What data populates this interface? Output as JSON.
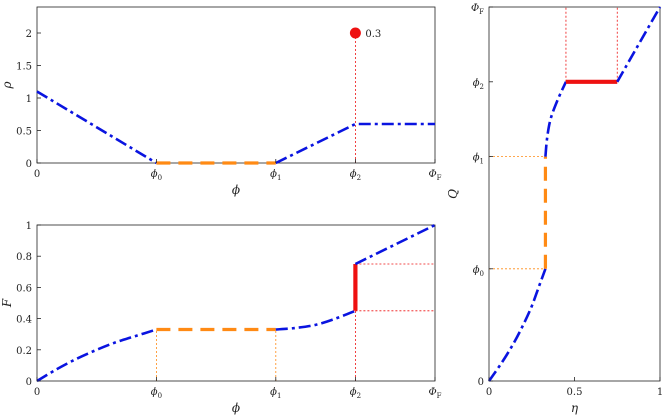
{
  "colors": {
    "blue": "#0a14e0",
    "orange": "#ff8a14",
    "red": "#ee1111",
    "axis": "#222222"
  },
  "chart_data": [
    {
      "type": "line",
      "name": "rho_vs_phi",
      "xlabel": "ϕ",
      "ylabel": "ρ",
      "xlim": [
        0,
        4
      ],
      "ylim": [
        0,
        2.4
      ],
      "x_ticks": [
        {
          "value": 0,
          "label": "0"
        },
        {
          "value": 1.5,
          "label": "ϕ",
          "sub": "0"
        },
        {
          "value": 3,
          "label": "ϕ",
          "sub": "1"
        },
        {
          "value": 4,
          "label": "ϕ",
          "sub": "2"
        },
        {
          "value": 5,
          "label": "Φ",
          "sub": "F"
        }
      ],
      "y_ticks": [
        {
          "value": 0,
          "label": "0"
        },
        {
          "value": 0.5,
          "label": "0.5"
        },
        {
          "value": 1,
          "label": "1"
        },
        {
          "value": 1.5,
          "label": "1.5"
        },
        {
          "value": 2,
          "label": "2"
        }
      ],
      "series": [
        {
          "style": "dashdot",
          "color": "blue",
          "points": [
            [
              0,
              1.1
            ],
            [
              1.5,
              0
            ],
            [
              1.5,
              0
            ]
          ]
        },
        {
          "style": "dashed",
          "color": "orange",
          "points": [
            [
              1.5,
              0
            ],
            [
              3,
              0
            ]
          ]
        },
        {
          "style": "dashdot",
          "color": "blue",
          "points": [
            [
              3,
              0
            ],
            [
              4,
              0.6
            ],
            [
              5,
              0.6
            ]
          ]
        }
      ],
      "guides": [
        {
          "points": [
            [
              4,
              0
            ],
            [
              4,
              2
            ]
          ],
          "color": "red"
        }
      ],
      "markers": [
        {
          "x": 4,
          "y": 2,
          "color": "red",
          "label": "0.3"
        }
      ]
    },
    {
      "type": "line",
      "name": "F_vs_phi",
      "xlabel": "ϕ",
      "ylabel": "F",
      "xlim": [
        0,
        5
      ],
      "ylim": [
        0,
        1
      ],
      "x_ticks": [
        {
          "value": 0,
          "label": "0"
        },
        {
          "value": 1.5,
          "label": "ϕ",
          "sub": "0"
        },
        {
          "value": 3,
          "label": "ϕ",
          "sub": "1"
        },
        {
          "value": 4,
          "label": "ϕ",
          "sub": "2"
        },
        {
          "value": 5,
          "label": "Φ",
          "sub": "F"
        }
      ],
      "y_ticks": [
        {
          "value": 0,
          "label": "0"
        },
        {
          "value": 0.2,
          "label": "0.2"
        },
        {
          "value": 0.4,
          "label": "0.4"
        },
        {
          "value": 0.6,
          "label": "0.6"
        },
        {
          "value": 0.8,
          "label": "0.8"
        },
        {
          "value": 1,
          "label": "1"
        }
      ],
      "series": [
        {
          "style": "dashdot",
          "color": "blue",
          "points": [
            [
              0,
              0
            ],
            [
              0.25,
              0.076
            ],
            [
              0.5,
              0.143
            ],
            [
              0.75,
              0.2
            ],
            [
              1.0,
              0.25
            ],
            [
              1.25,
              0.29
            ],
            [
              1.5,
              0.33
            ]
          ]
        },
        {
          "style": "dashed",
          "color": "orange",
          "points": [
            [
              1.5,
              0.33
            ],
            [
              3,
              0.33
            ]
          ]
        },
        {
          "style": "dashdot",
          "color": "blue",
          "points": [
            [
              3,
              0.33
            ],
            [
              3.25,
              0.34
            ],
            [
              3.5,
              0.36
            ],
            [
              3.75,
              0.4
            ],
            [
              4,
              0.45
            ]
          ]
        },
        {
          "style": "solid",
          "color": "red",
          "points": [
            [
              4,
              0.45
            ],
            [
              4,
              0.75
            ]
          ]
        },
        {
          "style": "dashdot",
          "color": "blue",
          "points": [
            [
              4,
              0.75
            ],
            [
              5,
              1
            ]
          ]
        }
      ],
      "guides": [
        {
          "points": [
            [
              1.5,
              0
            ],
            [
              1.5,
              0.33
            ]
          ],
          "color": "orange"
        },
        {
          "points": [
            [
              3,
              0
            ],
            [
              3,
              0.33
            ]
          ],
          "color": "orange"
        },
        {
          "points": [
            [
              4,
              0
            ],
            [
              4,
              0.45
            ]
          ],
          "color": "red"
        },
        {
          "points": [
            [
              4,
              0.75
            ],
            [
              5,
              0.75
            ]
          ],
          "color": "red"
        },
        {
          "points": [
            [
              4,
              0.45
            ],
            [
              5,
              0.45
            ]
          ],
          "color": "red"
        }
      ]
    },
    {
      "type": "line",
      "name": "Q_vs_eta",
      "xlabel": "η",
      "ylabel": "Q",
      "xlim": [
        0,
        1
      ],
      "ylim": [
        0,
        5
      ],
      "x_ticks": [
        {
          "value": 0,
          "label": "0"
        },
        {
          "value": 0.5,
          "label": "0.5"
        },
        {
          "value": 1,
          "label": "1"
        }
      ],
      "y_ticks": [
        {
          "value": 0,
          "label": "0"
        },
        {
          "value": 1.5,
          "label": "ϕ",
          "sub": "0"
        },
        {
          "value": 3,
          "label": "ϕ",
          "sub": "1"
        },
        {
          "value": 4,
          "label": "ϕ",
          "sub": "2"
        },
        {
          "value": 5,
          "label": "Φ",
          "sub": "F"
        }
      ],
      "series": [
        {
          "style": "dashdot",
          "color": "blue",
          "points": [
            [
              0,
              0
            ],
            [
              0.076,
              0.25
            ],
            [
              0.143,
              0.5
            ],
            [
              0.2,
              0.75
            ],
            [
              0.25,
              1.0
            ],
            [
              0.29,
              1.25
            ],
            [
              0.33,
              1.5
            ]
          ]
        },
        {
          "style": "dashed",
          "color": "orange",
          "points": [
            [
              0.33,
              1.5
            ],
            [
              0.33,
              3
            ]
          ]
        },
        {
          "style": "dashdot",
          "color": "blue",
          "points": [
            [
              0.33,
              3
            ],
            [
              0.34,
              3.25
            ],
            [
              0.36,
              3.5
            ],
            [
              0.4,
              3.75
            ],
            [
              0.45,
              4
            ]
          ]
        },
        {
          "style": "solid",
          "color": "red",
          "points": [
            [
              0.45,
              4
            ],
            [
              0.75,
              4
            ]
          ]
        },
        {
          "style": "dashdot",
          "color": "blue",
          "points": [
            [
              0.75,
              4
            ],
            [
              1,
              5
            ]
          ]
        }
      ],
      "guides": [
        {
          "points": [
            [
              0,
              1.5
            ],
            [
              0.33,
              1.5
            ]
          ],
          "color": "orange"
        },
        {
          "points": [
            [
              0,
              3
            ],
            [
              0.33,
              3
            ]
          ],
          "color": "orange"
        },
        {
          "points": [
            [
              0.45,
              4
            ],
            [
              0.45,
              5
            ]
          ],
          "color": "red"
        },
        {
          "points": [
            [
              0.75,
              4
            ],
            [
              0.75,
              5
            ]
          ],
          "color": "red"
        }
      ]
    }
  ]
}
